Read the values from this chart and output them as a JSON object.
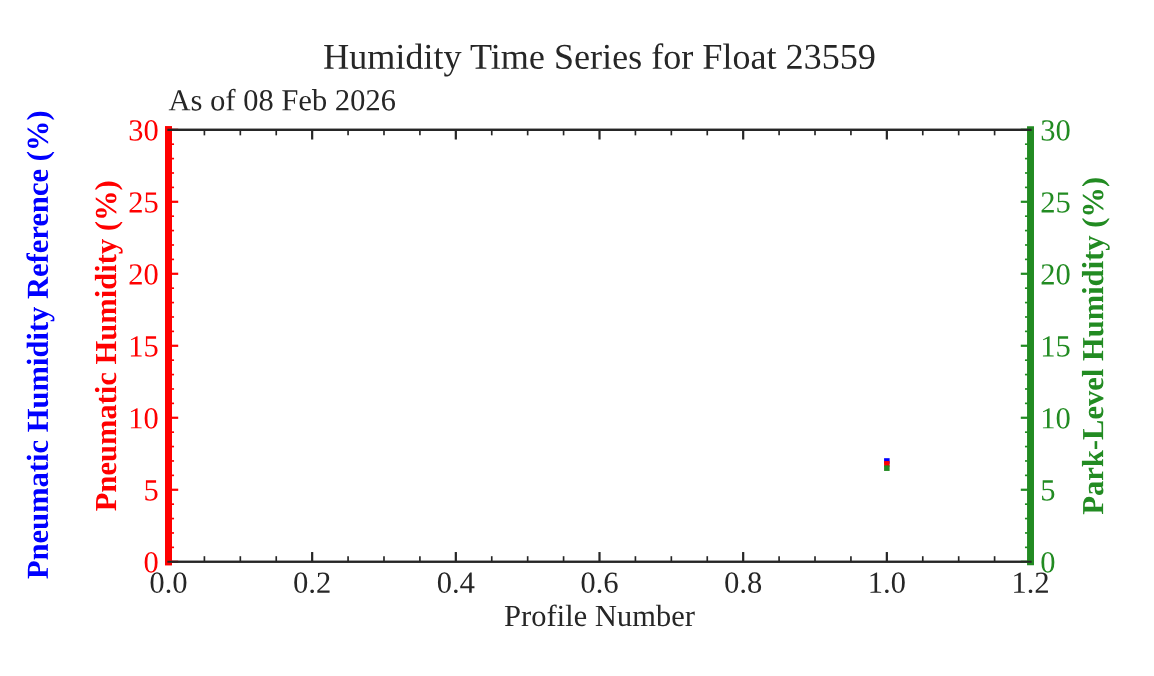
{
  "chart_data": {
    "type": "scatter",
    "title": "Humidity Time Series for Float 23559",
    "subtitle": "As of 08 Feb 2026",
    "xlabel": "Profile Number",
    "ylabel": "Pneumatic Humidity (%)",
    "y2label": "Park-Level Humidity (%)",
    "annotations": [
      "Pneumatic Humidity Reference (%)"
    ],
    "x": [
      1.0
    ],
    "series": [
      {
        "color": "#0000ff",
        "values": [
          7.0
        ]
      },
      {
        "color": "#ff0000",
        "values": [
          6.8
        ]
      },
      {
        "color": "#228b22",
        "values": [
          6.5
        ],
        "axis": "y2"
      }
    ],
    "xlim": [
      0.0,
      1.2
    ],
    "xticks": [
      {
        "value": 0.0,
        "label": "0.0"
      },
      {
        "value": 0.2,
        "label": "0.2"
      },
      {
        "value": 0.4,
        "label": "0.4"
      },
      {
        "value": 0.6,
        "label": "0.6"
      },
      {
        "value": 0.8,
        "label": "0.8"
      },
      {
        "value": 1.0,
        "label": "1.0"
      },
      {
        "value": 1.2,
        "label": "1.2"
      }
    ],
    "ylim": [
      0,
      30
    ],
    "yticks": [
      0,
      5,
      10,
      15,
      20,
      25,
      30
    ],
    "y2lim": [
      0,
      30
    ],
    "y2ticks": [
      0,
      5,
      10,
      15,
      20,
      25,
      30
    ],
    "marker": "square",
    "grid": false,
    "legend": false
  }
}
